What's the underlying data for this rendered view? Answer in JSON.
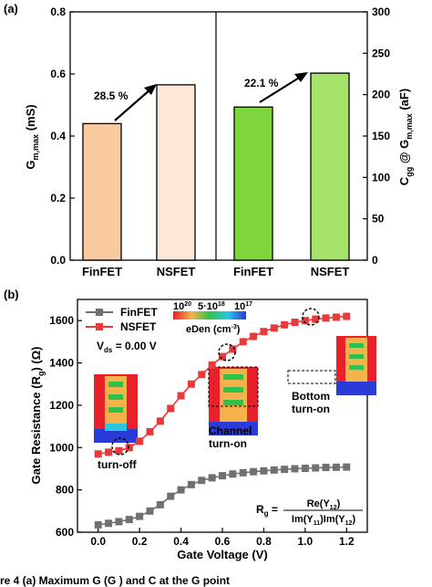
{
  "colors": {
    "finfet_bar": "#f9c9a0",
    "nsfet_bar": "#fde8d8",
    "finfet_green": "#7fd63c",
    "nsfet_green": "#a6e36b",
    "finfet_line": "#707070",
    "nsfet_line": "#e83a3a"
  },
  "caption_fragment": "re 4  (a) Maximum G    (G       ) and C    at the G       point",
  "chart_data": [
    {
      "type": "bar",
      "panel_label": "(a)",
      "categories": [
        "FinFET",
        "NSFET",
        "FinFET",
        "NSFET"
      ],
      "left_ylabel_main": "G",
      "left_ylabel_sub": "m,max",
      "left_ylabel_unit": " (mS)",
      "right_ylabel_main_1": "C",
      "right_ylabel_sub_1": "gg",
      "right_ylabel_mid": " @ G",
      "right_ylabel_sub_2": "m,max",
      "right_ylabel_unit": " (aF)",
      "left_ylim": [
        0.0,
        0.8
      ],
      "left_ticks": [
        "0.0",
        "0.2",
        "0.4",
        "0.6",
        "0.8"
      ],
      "right_ylim": [
        0,
        300
      ],
      "right_ticks": [
        "0",
        "50",
        "100",
        "150",
        "200",
        "250",
        "300"
      ],
      "left_series": {
        "values": [
          0.44,
          0.565
        ]
      },
      "right_series": {
        "values": [
          185,
          226
        ]
      },
      "annotations": [
        "28.5 %",
        "22.1 %"
      ]
    },
    {
      "type": "line",
      "panel_label": "(b)",
      "xlabel": "Gate Voltage (V)",
      "ylabel": "Gate Resistance (R  ) (Ω)",
      "ylabel_main": "Gate Resistance (R",
      "ylabel_sub": "g",
      "ylabel_end": ") (Ω)",
      "xlim": [
        -0.1,
        1.3
      ],
      "ylim": [
        600,
        1700
      ],
      "x_ticks": [
        "0.0",
        "0.2",
        "0.4",
        "0.6",
        "0.8",
        "1.0",
        "1.2"
      ],
      "y_ticks": [
        "600",
        "800",
        "1000",
        "1200",
        "1400",
        "1600"
      ],
      "x": [
        0.0,
        0.05,
        0.1,
        0.15,
        0.2,
        0.25,
        0.3,
        0.35,
        0.4,
        0.45,
        0.5,
        0.55,
        0.6,
        0.65,
        0.7,
        0.75,
        0.8,
        0.85,
        0.9,
        0.95,
        1.0,
        1.05,
        1.1,
        1.15,
        1.2
      ],
      "series": [
        {
          "name": "FinFET",
          "values": [
            635,
            642,
            650,
            660,
            675,
            700,
            730,
            770,
            800,
            825,
            845,
            857,
            867,
            875,
            881,
            886,
            890,
            894,
            897,
            900,
            902,
            904,
            906,
            907,
            908
          ]
        },
        {
          "name": "NSFET",
          "values": [
            970,
            978,
            985,
            1000,
            1030,
            1075,
            1125,
            1185,
            1245,
            1300,
            1345,
            1390,
            1430,
            1465,
            1500,
            1525,
            1548,
            1565,
            1580,
            1592,
            1600,
            1607,
            1612,
            1616,
            1620
          ]
        }
      ],
      "vds_label_main": "V",
      "vds_label_sub": "ds",
      "vds_label_end": " = 0.00 V",
      "colorbar_ticks": [
        "10",
        "20",
        "5·10",
        "18",
        "10",
        "17"
      ],
      "colorbar_label": "eDen (cm",
      "colorbar_label_sup": "-3",
      "colorbar_label_end": ")",
      "inset_labels": [
        "turn-off",
        "Channel",
        "turn-on",
        "Bottom",
        "turn-on"
      ],
      "formula_lhs_main": "R",
      "formula_lhs_sub": "g",
      "formula_lhs_eq": " = ",
      "formula_num": "Re(Y",
      "formula_num_sub": "12",
      "formula_num_end": ")",
      "formula_den": "Im(Y",
      "formula_den_sub1": "11",
      "formula_den_mid": ")Im(Y",
      "formula_den_sub2": "12",
      "formula_den_end": ")"
    }
  ]
}
